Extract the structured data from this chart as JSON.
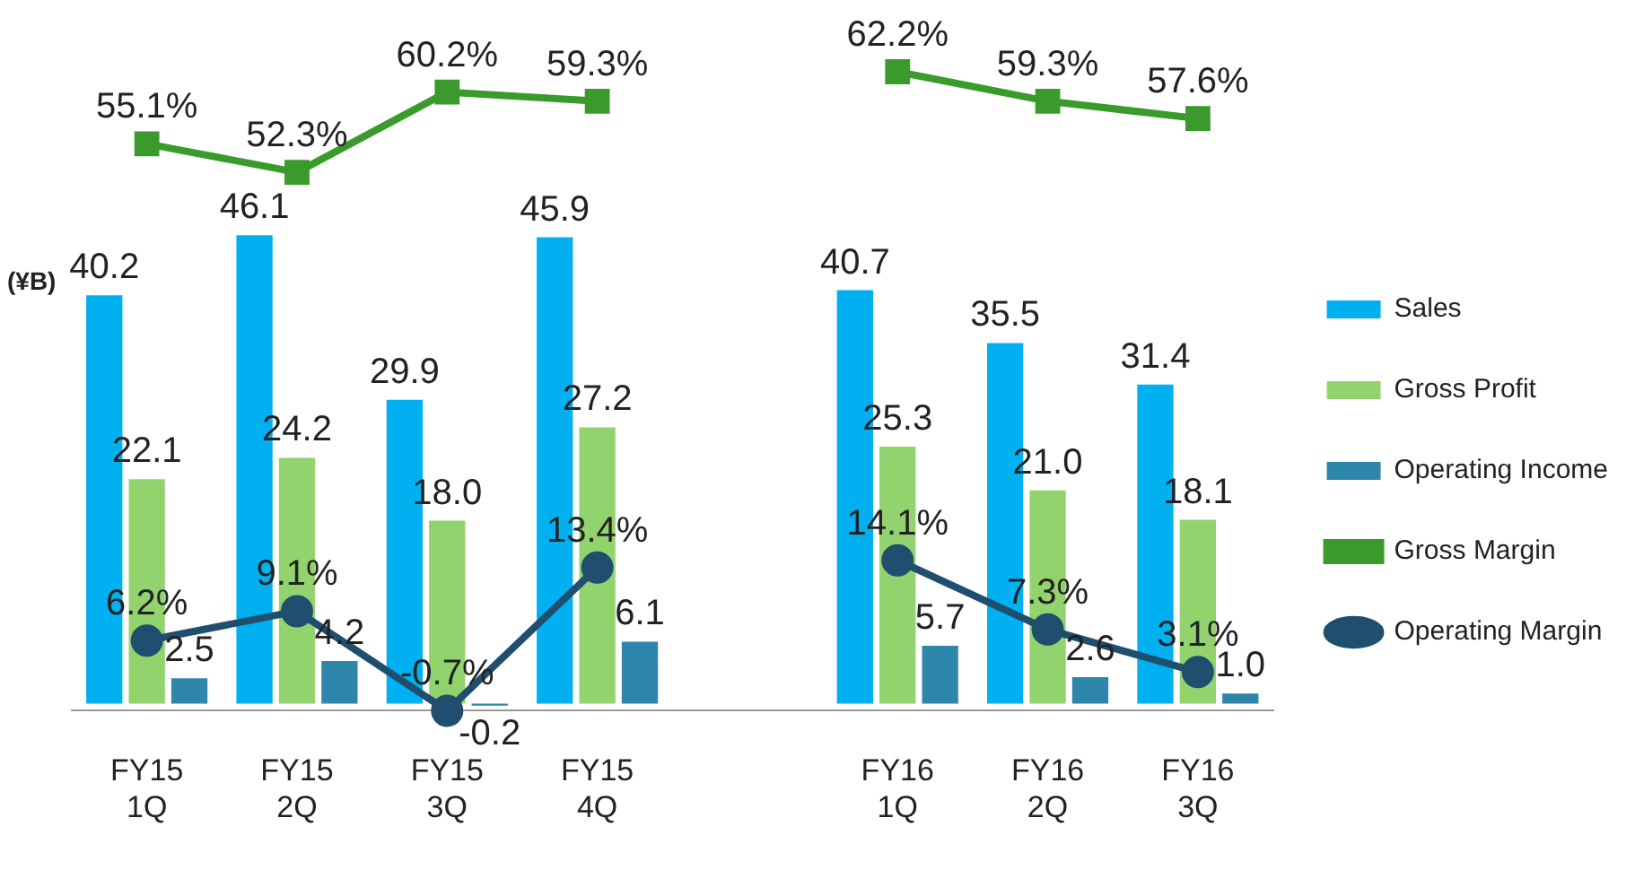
{
  "chart_data": {
    "type": "bar",
    "ylabel": "(¥B)",
    "categories": [
      "FY15 1Q",
      "FY15 2Q",
      "FY15 3Q",
      "FY15 4Q",
      null,
      "FY16 1Q",
      "FY16 2Q",
      "FY16 3Q"
    ],
    "tick_labels": "x",
    "grid": false,
    "legend": "right",
    "series": [
      {
        "name": "Sales",
        "color": "#00b0f0",
        "values": [
          40.2,
          46.1,
          29.9,
          45.9,
          null,
          40.7,
          35.5,
          31.4
        ],
        "value_labels": [
          "40.2",
          "46.1",
          "29.9",
          "45.9",
          null,
          "40.7",
          "35.5",
          "31.4"
        ]
      },
      {
        "name": "Gross Profit",
        "color": "#92d36e",
        "values": [
          22.1,
          24.2,
          18.0,
          27.2,
          null,
          25.3,
          21.0,
          18.1
        ],
        "value_labels": [
          "22.1",
          "24.2",
          "18.0",
          "27.2",
          null,
          "25.3",
          "21.0",
          "18.1"
        ]
      },
      {
        "name": "Operating Income",
        "color": "#2e86ab",
        "values": [
          2.5,
          4.2,
          -0.2,
          6.1,
          null,
          5.7,
          2.6,
          1.0
        ],
        "value_labels": [
          "2.5",
          "4.2",
          "-0.2",
          "6.1",
          null,
          "5.7",
          "2.6",
          "1.0"
        ]
      },
      {
        "name": "Gross Margin",
        "type": "line",
        "marker": "square",
        "color": "#3a9a2c",
        "values": [
          55.1,
          52.3,
          60.2,
          59.3,
          null,
          62.2,
          59.3,
          57.6
        ],
        "value_labels": [
          "55.1%",
          "52.3%",
          "60.2%",
          "59.3%",
          null,
          "62.2%",
          "59.3%",
          "57.6%"
        ]
      },
      {
        "name": "Operating Margin",
        "type": "line",
        "marker": "circle",
        "color": "#1f4e6e",
        "values": [
          6.2,
          9.1,
          -0.7,
          13.4,
          null,
          14.1,
          7.3,
          3.1
        ],
        "value_labels": [
          "6.2%",
          "9.1%",
          "-0.7%",
          "13.4%",
          null,
          "14.1%",
          "7.3%",
          "3.1%"
        ]
      }
    ]
  }
}
